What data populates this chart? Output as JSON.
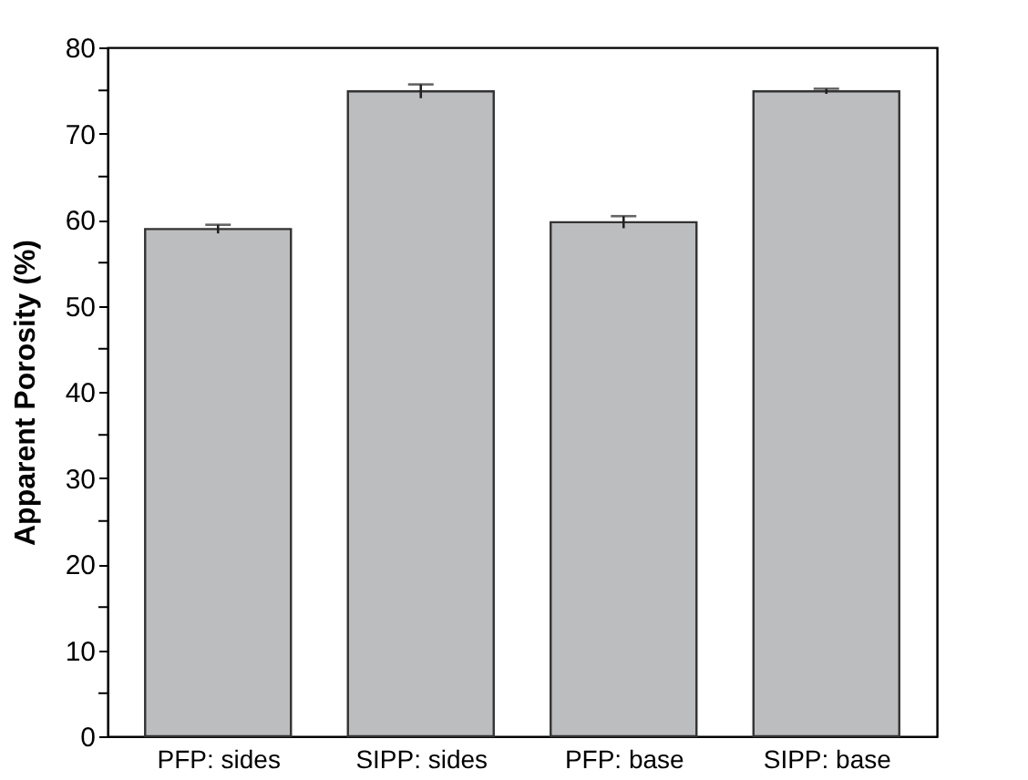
{
  "chart_data": {
    "type": "bar",
    "ylabel": "Apparent Porosity (%)",
    "categories": [
      "PFP: sides",
      "SIPP: sides",
      "PFP: base",
      "SIPP: base"
    ],
    "values": [
      58.9,
      74.9,
      59.7,
      74.9
    ],
    "errors": [
      0.5,
      0.8,
      0.7,
      0.3
    ],
    "color": "#bcbdbf",
    "ylim": [
      0,
      80
    ],
    "yticks": [
      0,
      {
        "value": 5,
        "label": null
      },
      10,
      {
        "value": 15,
        "label": null
      },
      20,
      {
        "value": 25,
        "label": null
      },
      30,
      {
        "value": 35,
        "label": null
      },
      40,
      {
        "value": 45,
        "label": null
      },
      50,
      {
        "value": 55,
        "label": null
      },
      60,
      {
        "value": 65,
        "label": null
      },
      70,
      {
        "value": 75,
        "label": null
      },
      80
    ],
    "grid": false
  }
}
